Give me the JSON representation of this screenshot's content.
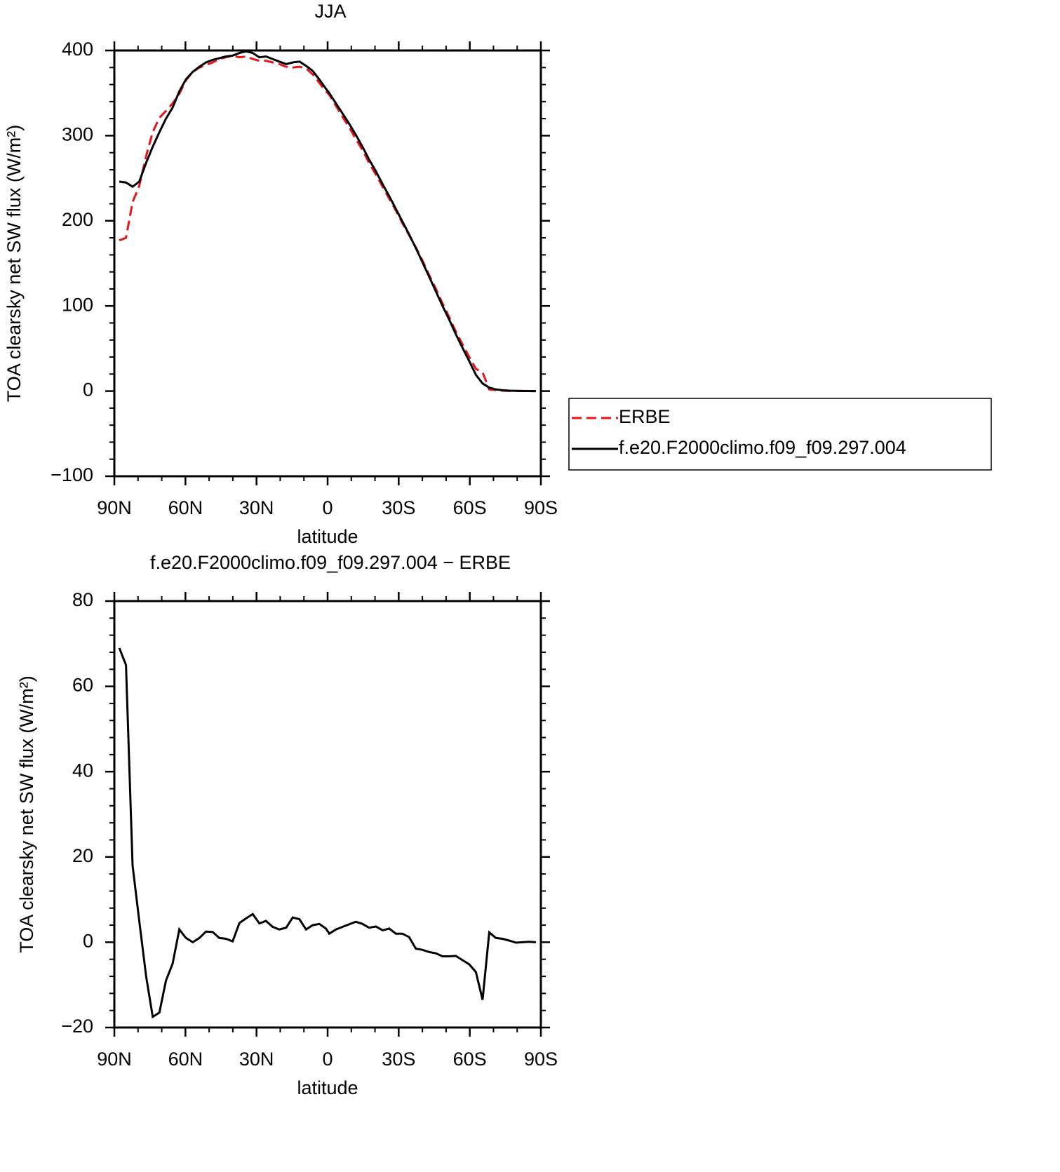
{
  "chart_data": [
    {
      "type": "line",
      "title": "JJA",
      "xlabel": "latitude",
      "ylabel": "TOA clearsky net SW flux (W/m²)",
      "x": [
        87.9,
        85.1,
        82.3,
        79.5,
        76.6,
        73.8,
        71.0,
        68.2,
        65.4,
        62.6,
        59.8,
        56.9,
        54.1,
        51.3,
        48.5,
        45.7,
        42.9,
        40.1,
        37.2,
        34.4,
        31.6,
        28.8,
        26.0,
        23.2,
        20.4,
        17.5,
        14.7,
        11.9,
        9.1,
        6.3,
        3.5,
        0.7,
        -0.7,
        -3.5,
        -6.3,
        -9.1,
        -11.9,
        -14.7,
        -17.5,
        -20.4,
        -23.2,
        -26.0,
        -28.8,
        -31.6,
        -34.4,
        -37.2,
        -40.1,
        -42.9,
        -45.7,
        -48.5,
        -51.3,
        -54.1,
        -56.9,
        -59.8,
        -62.6,
        -65.4,
        -68.2,
        -71.0,
        -73.8,
        -76.6,
        -79.5,
        -82.3,
        -85.1,
        -87.9
      ],
      "series": [
        {
          "name": "ERBE",
          "color": "#e8141c",
          "linestyle": "dashed",
          "values": [
            177,
            180,
            222,
            241,
            276,
            304,
            321,
            329,
            338,
            349,
            365,
            375,
            380,
            383,
            386,
            390,
            392,
            394,
            392,
            393,
            390,
            388,
            388,
            386,
            384,
            381,
            380,
            381,
            379,
            372,
            362,
            352,
            348,
            335,
            322,
            310,
            296,
            283,
            268,
            254,
            240,
            226,
            212,
            197,
            183,
            169,
            153,
            136,
            120,
            103,
            87,
            70,
            55,
            40,
            26,
            22,
            2,
            1,
            0.5,
            0.2,
            0.2,
            0.1,
            0,
            0
          ]
        },
        {
          "name": "f.e20.F2000climo.f09_f09.297.004",
          "color": "#000000",
          "linestyle": "solid",
          "values": [
            246,
            245,
            240,
            246,
            268,
            287,
            304,
            320,
            333,
            352,
            366,
            375,
            381,
            386,
            389,
            391,
            393,
            394,
            397,
            399,
            397,
            392,
            393,
            390,
            387,
            384,
            386,
            387,
            382,
            376,
            366,
            355,
            350,
            338,
            326,
            314,
            301,
            287,
            272,
            258,
            243,
            229,
            214,
            199,
            184,
            168,
            151,
            134,
            117,
            100,
            84,
            67,
            51,
            35,
            19,
            9,
            4,
            2,
            1,
            0.5,
            0.3,
            0.2,
            0.1,
            0
          ]
        }
      ],
      "xlim": [
        90,
        -90
      ],
      "xticks": [
        {
          "value": 90,
          "label": "90N"
        },
        {
          "value": 60,
          "label": "60N"
        },
        {
          "value": 30,
          "label": "30N"
        },
        0,
        {
          "value": -30,
          "label": "30S"
        },
        {
          "value": -60,
          "label": "60S"
        },
        {
          "value": -90,
          "label": "90S"
        }
      ],
      "ylim": [
        -100,
        400
      ],
      "yticks": [
        {
          "value": -100,
          "label": "−100"
        },
        0,
        100,
        200,
        300,
        400
      ],
      "legend": "right"
    },
    {
      "type": "line",
      "title": "f.e20.F2000climo.f09_f09.297.004 − ERBE",
      "xlabel": "latitude",
      "ylabel": "TOA clearsky net SW flux (W/m²)",
      "x": [
        87.9,
        85.1,
        82.3,
        79.5,
        76.6,
        73.8,
        71.0,
        68.2,
        65.4,
        62.6,
        59.8,
        56.9,
        54.1,
        51.3,
        48.5,
        45.7,
        42.9,
        40.1,
        37.2,
        34.4,
        31.6,
        28.8,
        26.0,
        23.2,
        20.4,
        17.5,
        14.7,
        11.9,
        9.1,
        6.3,
        3.5,
        0.7,
        -0.7,
        -3.5,
        -6.3,
        -9.1,
        -11.9,
        -14.7,
        -17.5,
        -20.4,
        -23.2,
        -26.0,
        -28.8,
        -31.6,
        -34.4,
        -37.2,
        -40.1,
        -42.9,
        -45.7,
        -48.5,
        -51.3,
        -54.1,
        -56.9,
        -59.8,
        -62.6,
        -65.4,
        -68.2,
        -71.0,
        -73.8,
        -76.6,
        -79.5,
        -82.3,
        -85.1,
        -87.9
      ],
      "series": [
        {
          "color": "#000000",
          "linestyle": "solid",
          "values": [
            69,
            65,
            18,
            5,
            -8,
            -17.5,
            -16.5,
            -9,
            -5,
            3,
            1,
            0,
            1,
            2.5,
            2.4,
            1,
            0.8,
            0.2,
            4.5,
            5.6,
            6.6,
            4.4,
            5,
            3.6,
            3,
            3.4,
            5.8,
            5.4,
            3,
            4,
            4.3,
            3.2,
            2,
            3,
            3.6,
            4.2,
            4.8,
            4.3,
            3.4,
            3.7,
            2.8,
            3.2,
            2,
            2,
            1.2,
            -1.5,
            -1.8,
            -2.3,
            -2.6,
            -3.3,
            -3.3,
            -3.2,
            -4.2,
            -5.2,
            -7,
            -13.5,
            2.3,
            1,
            0.8,
            0.4,
            -0.1,
            0,
            0.1,
            0
          ]
        }
      ],
      "xlim": [
        90,
        -90
      ],
      "xticks": [
        {
          "value": 90,
          "label": "90N"
        },
        {
          "value": 60,
          "label": "60N"
        },
        {
          "value": 30,
          "label": "30N"
        },
        0,
        {
          "value": -30,
          "label": "30S"
        },
        {
          "value": -60,
          "label": "60S"
        },
        {
          "value": -90,
          "label": "90S"
        }
      ],
      "ylim": [
        -20,
        80
      ],
      "yticks": [
        {
          "value": -20,
          "label": "−20"
        },
        0,
        20,
        40,
        60,
        80
      ]
    }
  ]
}
